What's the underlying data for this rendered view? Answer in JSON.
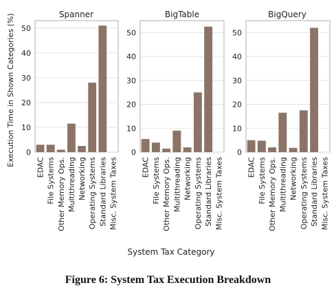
{
  "figure": {
    "caption": "Figure 6: System Tax Execution Breakdown",
    "ylabel": "Execution Time in Shown Categories (%)",
    "xlabel": "System Tax Category"
  },
  "chart_data": [
    {
      "type": "bar",
      "title": "Spanner",
      "categories": [
        "EDAC",
        "File Systems",
        "Other Memory Ops.",
        "Multithreading",
        "Networking",
        "Operating Systems",
        "Standard Libraries",
        "Misc. System Taxes"
      ],
      "values": [
        3.0,
        3.0,
        1.0,
        11.5,
        2.5,
        28.0,
        51.0,
        0.0
      ],
      "ylim": [
        0,
        53
      ],
      "yticks": [
        0,
        10,
        20,
        30,
        40,
        50
      ],
      "color": "#8b7466",
      "grid": true
    },
    {
      "type": "bar",
      "title": "BigTable",
      "categories": [
        "EDAC",
        "File Systems",
        "Other Memory Ops.",
        "Multithreading",
        "Networking",
        "Operating Systems",
        "Standard Libraries",
        "Misc. System Taxes"
      ],
      "values": [
        5.5,
        4.0,
        1.5,
        9.0,
        2.0,
        25.0,
        52.5,
        0.0
      ],
      "ylim": [
        0,
        55
      ],
      "yticks": [
        0,
        10,
        20,
        30,
        40,
        50
      ],
      "color": "#8b7466",
      "grid": true
    },
    {
      "type": "bar",
      "title": "BigQuery",
      "categories": [
        "EDAC",
        "File Systems",
        "Other Memory Ops.",
        "Multithreading",
        "Networking",
        "Operating Systems",
        "Standard Libraries",
        "Misc. System Taxes"
      ],
      "values": [
        5.0,
        4.8,
        2.0,
        16.5,
        1.8,
        17.5,
        52.0,
        0.0
      ],
      "ylim": [
        0,
        55
      ],
      "yticks": [
        0,
        10,
        20,
        30,
        40,
        50
      ],
      "color": "#8b7466",
      "grid": true
    }
  ]
}
